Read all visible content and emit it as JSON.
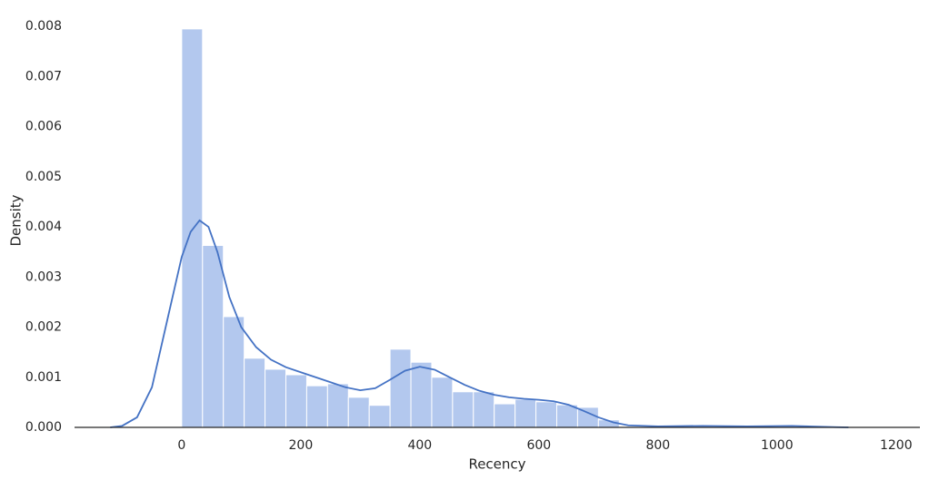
{
  "chart_data": {
    "type": "histogram",
    "xlabel": "Recency",
    "ylabel": "Density",
    "bins": [
      0,
      35,
      70,
      105,
      140,
      175,
      210,
      245,
      280,
      315,
      350,
      385,
      420,
      455,
      490,
      525,
      560,
      595,
      630,
      665,
      700,
      735
    ],
    "values": [
      0.00795,
      0.00363,
      0.00221,
      0.00138,
      0.00116,
      0.00105,
      0.00083,
      0.00087,
      0.0006,
      0.00044,
      0.00156,
      0.0013,
      0.001,
      0.00071,
      0.00071,
      0.00047,
      0.00056,
      0.00051,
      0.00045,
      0.0004,
      0.00015
    ],
    "color": "#b3c8ee",
    "kde": {
      "color": "#4472c4",
      "x": [
        -120,
        -100,
        -75,
        -50,
        -25,
        0,
        15,
        30,
        45,
        60,
        80,
        100,
        125,
        150,
        175,
        200,
        225,
        250,
        275,
        300,
        325,
        350,
        375,
        400,
        425,
        450,
        475,
        500,
        525,
        550,
        575,
        600,
        625,
        650,
        675,
        700,
        725,
        750,
        800,
        875,
        950,
        1025,
        1100,
        1120
      ],
      "y": [
        0,
        3e-05,
        0.0002,
        0.0008,
        0.0021,
        0.0034,
        0.0039,
        0.00413,
        0.004,
        0.0035,
        0.0026,
        0.002,
        0.0016,
        0.00135,
        0.0012,
        0.0011,
        0.001,
        0.0009,
        0.0008,
        0.00074,
        0.00078,
        0.00095,
        0.00113,
        0.00121,
        0.00115,
        0.001,
        0.00085,
        0.00073,
        0.00065,
        0.0006,
        0.00057,
        0.00055,
        0.00052,
        0.00045,
        0.00033,
        0.0002,
        0.0001,
        4e-05,
        2e-05,
        3e-05,
        2e-05,
        3e-05,
        5e-06,
        0
      ]
    },
    "xlim": [
      -180,
      1240
    ],
    "ylim": [
      0,
      0.0084
    ],
    "xticks": [
      0,
      200,
      400,
      600,
      800,
      1000,
      1200
    ],
    "yticks": [
      {
        "value": 0,
        "label": "0.000"
      },
      {
        "value": 0.001,
        "label": "0.001"
      },
      {
        "value": 0.002,
        "label": "0.002"
      },
      {
        "value": 0.003,
        "label": "0.003"
      },
      {
        "value": 0.004,
        "label": "0.004"
      },
      {
        "value": 0.005,
        "label": "0.005"
      },
      {
        "value": 0.006,
        "label": "0.006"
      },
      {
        "value": 0.007,
        "label": "0.007"
      },
      {
        "value": 0.008,
        "label": "0.008"
      }
    ]
  }
}
